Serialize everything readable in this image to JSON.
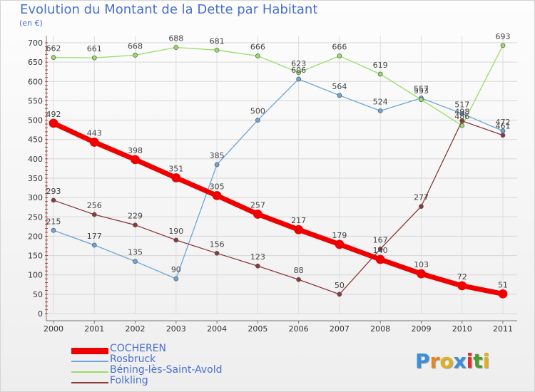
{
  "title": "Evolution du Montant de la Dette par Habitant",
  "subtitle": "(en €)",
  "logo": {
    "letters": [
      "P",
      "r",
      "o",
      "x",
      "i",
      "t",
      "i"
    ],
    "colors": [
      "#3a8fd8",
      "#e8861e",
      "#e0b020",
      "#3a8fd8",
      "#e03030",
      "#4a9c30",
      "#e0b020"
    ]
  },
  "chart_data": {
    "type": "line",
    "x": [
      "2000",
      "2001",
      "2002",
      "2003",
      "2004",
      "2005",
      "2006",
      "2007",
      "2008",
      "2009",
      "2010",
      "2011"
    ],
    "ylim": [
      0,
      700
    ],
    "yticks": [
      0,
      50,
      100,
      150,
      200,
      250,
      300,
      350,
      400,
      450,
      500,
      550,
      600,
      650,
      700
    ],
    "grid": true,
    "legend_position": "bottom-left",
    "series": [
      {
        "name": "COCHEREN",
        "color": "#ee0000",
        "width": 7,
        "marker": 6,
        "values": [
          492,
          443,
          398,
          351,
          305,
          257,
          217,
          179,
          140,
          103,
          72,
          51
        ]
      },
      {
        "name": "Rosbruck",
        "color": "#6ea6d8",
        "width": 1.3,
        "marker": 3,
        "values": [
          215,
          177,
          135,
          90,
          385,
          500,
          606,
          564,
          524,
          557,
          517,
          472
        ]
      },
      {
        "name": "Béning-lès-Saint-Avold",
        "color": "#99dd66",
        "width": 1.3,
        "marker": 3,
        "values": [
          662,
          661,
          668,
          688,
          681,
          666,
          623,
          666,
          619,
          553,
          486,
          693
        ]
      },
      {
        "name": "Folkling",
        "color": "#8b3a3a",
        "width": 1.3,
        "marker": 3,
        "values": [
          293,
          256,
          229,
          190,
          156,
          123,
          88,
          50,
          167,
          277,
          498,
          461
        ]
      }
    ]
  }
}
